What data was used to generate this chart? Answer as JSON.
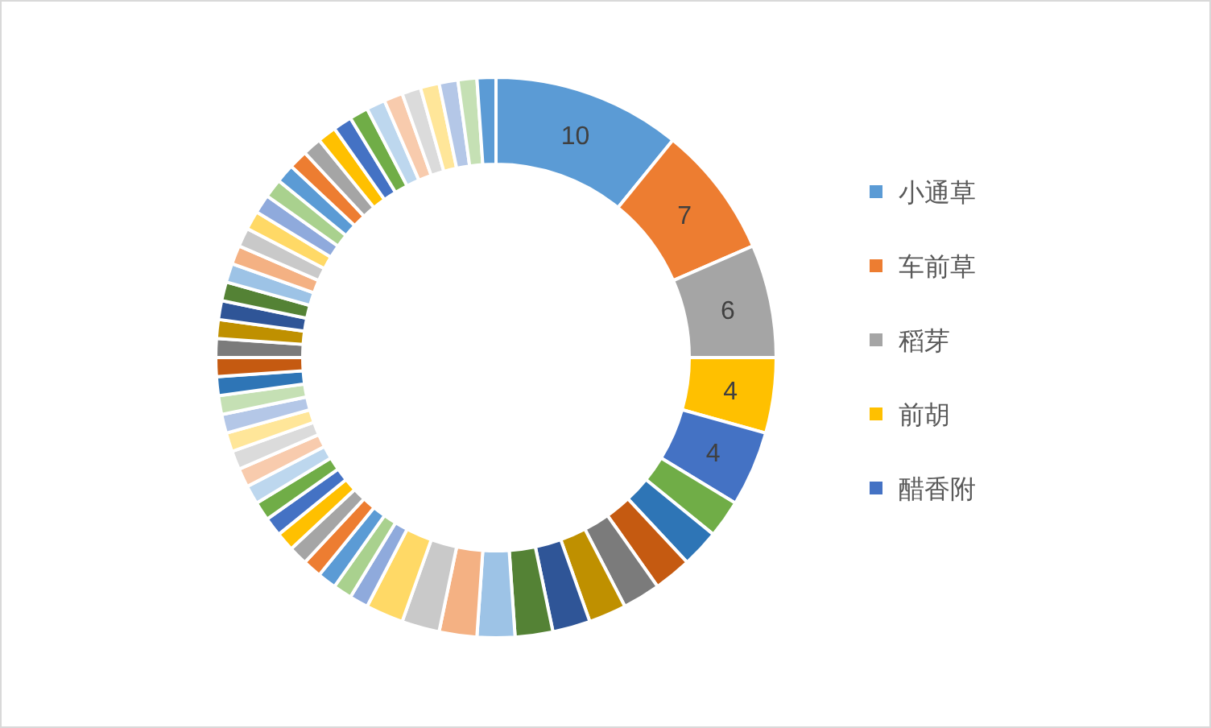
{
  "chart_data": {
    "type": "donut",
    "categories": [
      "小通草",
      "车前草",
      "稻芽",
      "前胡",
      "醋香附",
      null,
      null,
      null,
      null,
      null,
      null,
      null,
      null,
      null,
      null,
      null,
      null,
      null,
      null,
      null,
      null,
      null,
      null,
      null,
      null,
      null,
      null,
      null,
      null,
      null,
      null,
      null,
      null,
      null,
      null,
      null,
      null,
      null,
      null,
      null,
      null,
      null,
      null,
      null,
      null,
      null,
      null,
      null,
      null,
      null,
      null,
      null,
      null,
      null,
      null
    ],
    "values": [
      10,
      7,
      6,
      4,
      4,
      2,
      2,
      2,
      2,
      2,
      2,
      2,
      2,
      2,
      2,
      2,
      1,
      1,
      1,
      1,
      1,
      1,
      1,
      1,
      1,
      1,
      1,
      1,
      1,
      1,
      1,
      1,
      1,
      1,
      1,
      1,
      1,
      1,
      1,
      1,
      1,
      1,
      1,
      1,
      1,
      1,
      1,
      1,
      1,
      1,
      1,
      1,
      1,
      1,
      1
    ],
    "value_labels": [
      "10",
      "7",
      "6",
      "4",
      "4",
      null,
      null,
      null,
      null,
      null,
      null,
      null,
      null,
      null,
      null,
      null,
      null,
      null,
      null,
      null,
      null,
      null,
      null,
      null,
      null,
      null,
      null,
      null,
      null,
      null,
      null,
      null,
      null,
      null,
      null,
      null,
      null,
      null,
      null,
      null,
      null,
      null,
      null,
      null,
      null,
      null,
      null,
      null,
      null,
      null,
      null,
      null,
      null,
      null,
      null
    ],
    "colors": [
      "#5b9bd5",
      "#ed7d31",
      "#a5a5a5",
      "#ffc000",
      "#4472c4",
      "#70ad47",
      "#2e75b6",
      "#c55a11",
      "#7b7b7b",
      "#bf9000",
      "#2f5597",
      "#548235",
      "#9dc3e6",
      "#f4b183",
      "#c9c9c9",
      "#ffd966",
      "#8faadc",
      "#a9d18e",
      "#5b9bd5",
      "#ed7d31",
      "#a5a5a5",
      "#ffc000",
      "#4472c4",
      "#70ad47",
      "#bdd7ee",
      "#f8cbad",
      "#dbdbdb",
      "#ffe699",
      "#b4c7e7",
      "#c5e0b4",
      "#2e75b6",
      "#c55a11",
      "#7b7b7b",
      "#bf9000",
      "#2f5597",
      "#548235",
      "#9dc3e6",
      "#f4b183",
      "#c9c9c9",
      "#ffd966",
      "#8faadc",
      "#a9d18e",
      "#5b9bd5",
      "#ed7d31",
      "#a5a5a5",
      "#ffc000",
      "#4472c4",
      "#70ad47",
      "#bdd7ee",
      "#f8cbad",
      "#dbdbdb",
      "#ffe699",
      "#b4c7e7",
      "#c5e0b4",
      "#5b9bd5"
    ],
    "legend": "right"
  }
}
